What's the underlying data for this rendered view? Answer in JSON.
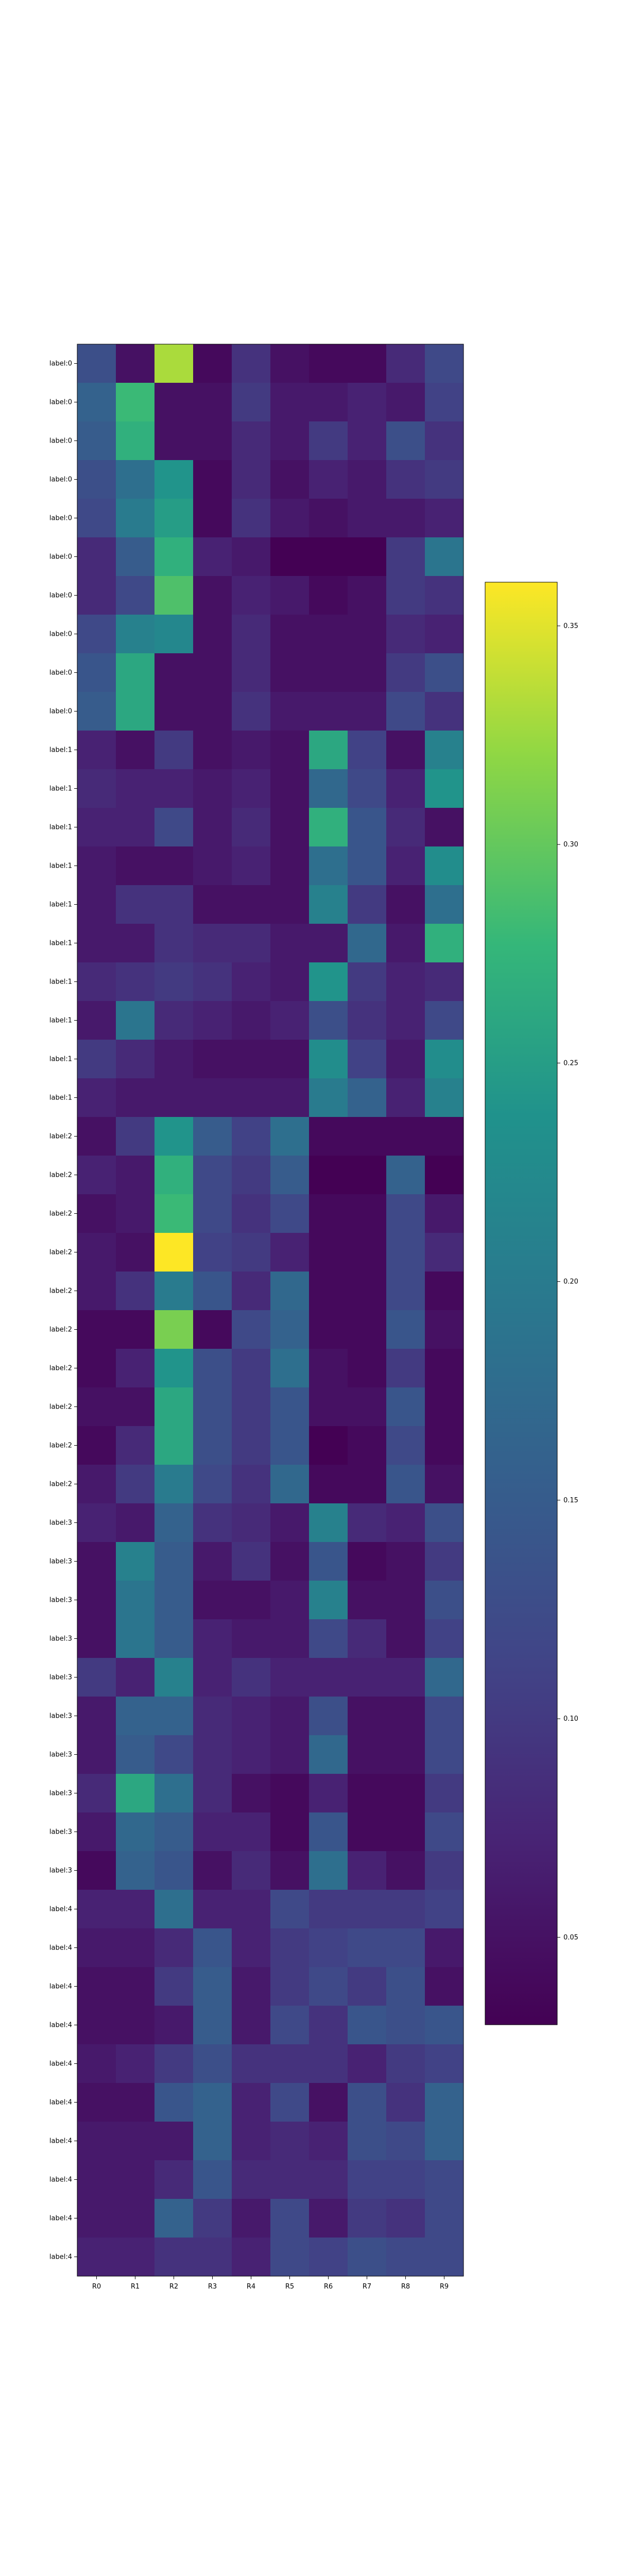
{
  "chart_data": {
    "type": "heatmap",
    "title": "",
    "xlabel": "",
    "ylabel": "",
    "columns": [
      "R0",
      "R1",
      "R2",
      "R3",
      "R4",
      "R5",
      "R6",
      "R7",
      "R8",
      "R9"
    ],
    "rows": [
      "label:0",
      "label:0",
      "label:0",
      "label:0",
      "label:0",
      "label:0",
      "label:0",
      "label:0",
      "label:0",
      "label:0",
      "label:1",
      "label:1",
      "label:1",
      "label:1",
      "label:1",
      "label:1",
      "label:1",
      "label:1",
      "label:1",
      "label:1",
      "label:2",
      "label:2",
      "label:2",
      "label:2",
      "label:2",
      "label:2",
      "label:2",
      "label:2",
      "label:2",
      "label:2",
      "label:3",
      "label:3",
      "label:3",
      "label:3",
      "label:3",
      "label:3",
      "label:3",
      "label:3",
      "label:3",
      "label:3",
      "label:4",
      "label:4",
      "label:4",
      "label:4",
      "label:4",
      "label:4",
      "label:4",
      "label:4",
      "label:4",
      "label:4"
    ],
    "values": [
      [
        0.13,
        0.05,
        0.33,
        0.04,
        0.09,
        0.05,
        0.04,
        0.04,
        0.08,
        0.12
      ],
      [
        0.16,
        0.28,
        0.05,
        0.05,
        0.1,
        0.06,
        0.06,
        0.07,
        0.06,
        0.11
      ],
      [
        0.15,
        0.27,
        0.05,
        0.05,
        0.08,
        0.06,
        0.1,
        0.07,
        0.13,
        0.09
      ],
      [
        0.13,
        0.18,
        0.24,
        0.04,
        0.08,
        0.05,
        0.07,
        0.06,
        0.09,
        0.1
      ],
      [
        0.12,
        0.2,
        0.25,
        0.04,
        0.09,
        0.06,
        0.05,
        0.06,
        0.06,
        0.07
      ],
      [
        0.08,
        0.15,
        0.27,
        0.07,
        0.06,
        0.03,
        0.03,
        0.03,
        0.1,
        0.19
      ],
      [
        0.08,
        0.12,
        0.29,
        0.05,
        0.07,
        0.06,
        0.04,
        0.05,
        0.1,
        0.09
      ],
      [
        0.12,
        0.21,
        0.22,
        0.05,
        0.08,
        0.05,
        0.05,
        0.05,
        0.08,
        0.07
      ],
      [
        0.14,
        0.26,
        0.05,
        0.05,
        0.08,
        0.05,
        0.05,
        0.05,
        0.1,
        0.13
      ],
      [
        0.15,
        0.26,
        0.05,
        0.05,
        0.09,
        0.06,
        0.06,
        0.06,
        0.12,
        0.09
      ],
      [
        0.07,
        0.05,
        0.1,
        0.05,
        0.06,
        0.05,
        0.26,
        0.11,
        0.05,
        0.21
      ],
      [
        0.08,
        0.07,
        0.07,
        0.06,
        0.07,
        0.05,
        0.17,
        0.12,
        0.07,
        0.24
      ],
      [
        0.07,
        0.07,
        0.12,
        0.06,
        0.08,
        0.05,
        0.27,
        0.14,
        0.08,
        0.05
      ],
      [
        0.06,
        0.05,
        0.05,
        0.06,
        0.07,
        0.05,
        0.18,
        0.14,
        0.07,
        0.23
      ],
      [
        0.06,
        0.09,
        0.09,
        0.05,
        0.05,
        0.05,
        0.21,
        0.1,
        0.05,
        0.18
      ],
      [
        0.06,
        0.06,
        0.09,
        0.08,
        0.08,
        0.06,
        0.06,
        0.17,
        0.06,
        0.27
      ],
      [
        0.08,
        0.09,
        0.1,
        0.09,
        0.07,
        0.06,
        0.24,
        0.1,
        0.07,
        0.08
      ],
      [
        0.06,
        0.19,
        0.08,
        0.07,
        0.06,
        0.07,
        0.13,
        0.09,
        0.07,
        0.12
      ],
      [
        0.1,
        0.08,
        0.06,
        0.05,
        0.05,
        0.05,
        0.23,
        0.11,
        0.06,
        0.23
      ],
      [
        0.07,
        0.06,
        0.06,
        0.06,
        0.06,
        0.06,
        0.2,
        0.16,
        0.07,
        0.21
      ],
      [
        0.05,
        0.1,
        0.24,
        0.15,
        0.11,
        0.18,
        0.04,
        0.04,
        0.04,
        0.04
      ],
      [
        0.07,
        0.06,
        0.27,
        0.12,
        0.1,
        0.15,
        0.03,
        0.03,
        0.16,
        0.03
      ],
      [
        0.05,
        0.06,
        0.28,
        0.12,
        0.09,
        0.12,
        0.04,
        0.04,
        0.12,
        0.06
      ],
      [
        0.06,
        0.05,
        0.36,
        0.11,
        0.1,
        0.07,
        0.04,
        0.04,
        0.12,
        0.08
      ],
      [
        0.06,
        0.09,
        0.2,
        0.14,
        0.08,
        0.17,
        0.04,
        0.04,
        0.12,
        0.04
      ],
      [
        0.04,
        0.04,
        0.31,
        0.04,
        0.12,
        0.16,
        0.04,
        0.04,
        0.14,
        0.05
      ],
      [
        0.04,
        0.07,
        0.24,
        0.13,
        0.1,
        0.18,
        0.05,
        0.04,
        0.1,
        0.04
      ],
      [
        0.05,
        0.05,
        0.26,
        0.13,
        0.1,
        0.14,
        0.05,
        0.05,
        0.14,
        0.04
      ],
      [
        0.04,
        0.08,
        0.26,
        0.13,
        0.1,
        0.14,
        0.03,
        0.04,
        0.12,
        0.04
      ],
      [
        0.06,
        0.1,
        0.2,
        0.12,
        0.09,
        0.17,
        0.04,
        0.04,
        0.14,
        0.05
      ],
      [
        0.07,
        0.06,
        0.16,
        0.09,
        0.08,
        0.06,
        0.21,
        0.08,
        0.07,
        0.13
      ],
      [
        0.05,
        0.21,
        0.15,
        0.06,
        0.09,
        0.05,
        0.14,
        0.04,
        0.05,
        0.1
      ],
      [
        0.05,
        0.19,
        0.15,
        0.05,
        0.05,
        0.06,
        0.21,
        0.05,
        0.05,
        0.13
      ],
      [
        0.05,
        0.19,
        0.15,
        0.07,
        0.06,
        0.06,
        0.12,
        0.08,
        0.05,
        0.11
      ],
      [
        0.1,
        0.07,
        0.21,
        0.07,
        0.09,
        0.07,
        0.07,
        0.07,
        0.07,
        0.17
      ],
      [
        0.06,
        0.16,
        0.16,
        0.08,
        0.07,
        0.06,
        0.13,
        0.05,
        0.05,
        0.12
      ],
      [
        0.06,
        0.15,
        0.12,
        0.08,
        0.07,
        0.06,
        0.17,
        0.05,
        0.05,
        0.12
      ],
      [
        0.08,
        0.26,
        0.18,
        0.08,
        0.05,
        0.04,
        0.07,
        0.04,
        0.04,
        0.1
      ],
      [
        0.06,
        0.17,
        0.15,
        0.07,
        0.07,
        0.04,
        0.14,
        0.04,
        0.04,
        0.12
      ],
      [
        0.04,
        0.16,
        0.14,
        0.05,
        0.08,
        0.05,
        0.18,
        0.07,
        0.05,
        0.1
      ],
      [
        0.07,
        0.07,
        0.18,
        0.07,
        0.07,
        0.12,
        0.1,
        0.1,
        0.1,
        0.11
      ],
      [
        0.06,
        0.06,
        0.08,
        0.14,
        0.07,
        0.1,
        0.11,
        0.12,
        0.12,
        0.06
      ],
      [
        0.05,
        0.05,
        0.1,
        0.15,
        0.06,
        0.1,
        0.12,
        0.1,
        0.13,
        0.05
      ],
      [
        0.05,
        0.05,
        0.06,
        0.15,
        0.06,
        0.12,
        0.09,
        0.14,
        0.13,
        0.14
      ],
      [
        0.06,
        0.07,
        0.1,
        0.13,
        0.09,
        0.09,
        0.09,
        0.07,
        0.1,
        0.11
      ],
      [
        0.05,
        0.05,
        0.14,
        0.16,
        0.07,
        0.12,
        0.05,
        0.13,
        0.09,
        0.16
      ],
      [
        0.06,
        0.06,
        0.06,
        0.16,
        0.07,
        0.08,
        0.07,
        0.13,
        0.12,
        0.16
      ],
      [
        0.06,
        0.06,
        0.08,
        0.14,
        0.08,
        0.08,
        0.08,
        0.11,
        0.11,
        0.12
      ],
      [
        0.06,
        0.06,
        0.16,
        0.1,
        0.06,
        0.12,
        0.06,
        0.1,
        0.09,
        0.12
      ],
      [
        0.07,
        0.07,
        0.09,
        0.09,
        0.07,
        0.12,
        0.11,
        0.13,
        0.12,
        0.12
      ]
    ],
    "vmin": 0.03,
    "vmax": 0.36,
    "colormap": "viridis",
    "colorbar_ticks": [
      "0.05",
      "0.10",
      "0.15",
      "0.20",
      "0.25",
      "0.30",
      "0.35"
    ],
    "colorbar_tick_values": [
      0.05,
      0.1,
      0.15,
      0.2,
      0.25,
      0.3,
      0.35
    ]
  }
}
